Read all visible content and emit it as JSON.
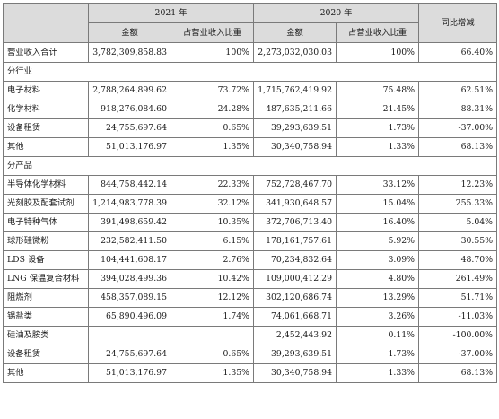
{
  "header": {
    "year_2021": "2021 年",
    "year_2020": "2020 年",
    "yoy": "同比增减",
    "amount": "金额",
    "share": "占营业收入比重"
  },
  "total": {
    "label": "营业收入合计",
    "amt2021": "3,782,309,858.83",
    "pct2021": "100%",
    "amt2020": "2,273,032,030.03",
    "pct2020": "100%",
    "yoy": "66.40%"
  },
  "industry": {
    "title": "分行业",
    "rows": [
      {
        "label": "电子材料",
        "amt2021": "2,788,264,899.62",
        "pct2021": "73.72%",
        "amt2020": "1,715,762,419.92",
        "pct2020": "75.48%",
        "yoy": "62.51%"
      },
      {
        "label": "化学材料",
        "amt2021": "918,276,084.60",
        "pct2021": "24.28%",
        "amt2020": "487,635,211.66",
        "pct2020": "21.45%",
        "yoy": "88.31%"
      },
      {
        "label": "设备租赁",
        "amt2021": "24,755,697.64",
        "pct2021": "0.65%",
        "amt2020": "39,293,639.51",
        "pct2020": "1.73%",
        "yoy": "-37.00%"
      },
      {
        "label": "其他",
        "amt2021": "51,013,176.97",
        "pct2021": "1.35%",
        "amt2020": "30,340,758.94",
        "pct2020": "1.33%",
        "yoy": "68.13%"
      }
    ]
  },
  "product": {
    "title": "分产品",
    "rows": [
      {
        "label": "半导体化学材料",
        "amt2021": "844,758,442.14",
        "pct2021": "22.33%",
        "amt2020": "752,728,467.70",
        "pct2020": "33.12%",
        "yoy": "12.23%"
      },
      {
        "label": "光刻胶及配套试剂",
        "amt2021": "1,214,983,778.39",
        "pct2021": "32.12%",
        "amt2020": "341,930,648.57",
        "pct2020": "15.04%",
        "yoy": "255.33%"
      },
      {
        "label": "电子特种气体",
        "amt2021": "391,498,659.42",
        "pct2021": "10.35%",
        "amt2020": "372,706,713.40",
        "pct2020": "16.40%",
        "yoy": "5.04%"
      },
      {
        "label": "球形硅微粉",
        "amt2021": "232,582,411.50",
        "pct2021": "6.15%",
        "amt2020": "178,161,757.61",
        "pct2020": "5.92%",
        "yoy": "30.55%"
      },
      {
        "label": "LDS 设备",
        "amt2021": "104,441,608.17",
        "pct2021": "2.76%",
        "amt2020": "70,234,832.64",
        "pct2020": "3.09%",
        "yoy": "48.70%"
      },
      {
        "label": "LNG 保温复合材料",
        "amt2021": "394,028,499.36",
        "pct2021": "10.42%",
        "amt2020": "109,000,412.29",
        "pct2020": "4.80%",
        "yoy": "261.49%"
      },
      {
        "label": "阻燃剂",
        "amt2021": "458,357,089.15",
        "pct2021": "12.12%",
        "amt2020": "302,120,686.74",
        "pct2020": "13.29%",
        "yoy": "51.71%"
      },
      {
        "label": "锡盐类",
        "amt2021": "65,890,496.09",
        "pct2021": "1.74%",
        "amt2020": "74,061,668.71",
        "pct2020": "3.26%",
        "yoy": "-11.03%"
      },
      {
        "label": "硅油及胺类",
        "amt2021": "",
        "pct2021": "",
        "amt2020": "2,452,443.92",
        "pct2020": "0.11%",
        "yoy": "-100.00%"
      },
      {
        "label": "设备租赁",
        "amt2021": "24,755,697.64",
        "pct2021": "0.65%",
        "amt2020": "39,293,639.51",
        "pct2020": "1.73%",
        "yoy": "-37.00%"
      },
      {
        "label": "其他",
        "amt2021": "51,013,176.97",
        "pct2021": "1.35%",
        "amt2020": "30,340,758.94",
        "pct2020": "1.33%",
        "yoy": "68.13%"
      }
    ]
  }
}
